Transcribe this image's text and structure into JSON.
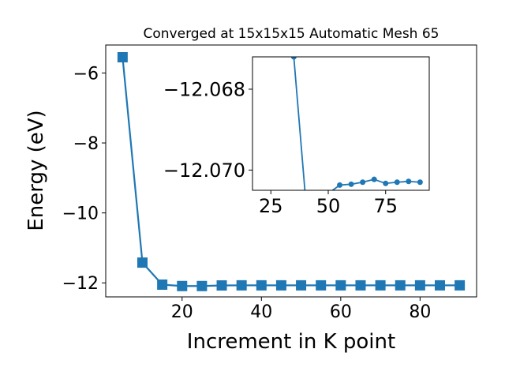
{
  "chart_data": [
    {
      "type": "line",
      "title": "Converged at 15x15x15 Automatic Mesh 65",
      "xlabel": "Increment in K point",
      "ylabel": "Energy (eV)",
      "xlim": [
        0.75,
        94.25
      ],
      "ylim": [
        -12.4,
        -5.2
      ],
      "xticks": [
        20,
        40,
        60,
        80
      ],
      "xtick_labels": [
        "20",
        "40",
        "60",
        "80"
      ],
      "yticks": [
        -12,
        -10,
        -8,
        -6
      ],
      "ytick_labels": [
        "−12",
        "−10",
        "−8",
        "−6"
      ],
      "marker": "square",
      "grid": false,
      "color": "#1f77b4",
      "series": [
        {
          "x": [
            5,
            10,
            15,
            20,
            25,
            30,
            35,
            40,
            45,
            50,
            55,
            60,
            65,
            70,
            75,
            80,
            85,
            90
          ],
          "y": [
            -5.55,
            -11.42,
            -12.05,
            -12.09,
            -12.09,
            -12.073,
            -12.0701,
            -12.0701,
            -12.0701,
            -12.0701,
            -12.0702,
            -12.0702,
            -12.0702,
            -12.0703,
            -12.0702,
            -12.0702,
            -12.0703,
            -12.0702
          ]
        }
      ]
    },
    {
      "type": "line",
      "title": "",
      "xlabel": "",
      "ylabel": "",
      "xlim": [
        17,
        94
      ],
      "ylim": [
        -12.0705,
        -12.0672
      ],
      "xticks": [
        25,
        50,
        75
      ],
      "xtick_labels": [
        "25",
        "50",
        "75"
      ],
      "yticks": [
        -12.07,
        -12.068
      ],
      "ytick_labels": [
        "−12.070",
        "−12.068"
      ],
      "marker": "circle",
      "grid": false,
      "color": "#1f77b4",
      "series": [
        {
          "x": [
            35,
            40,
            45,
            50,
            55,
            60,
            65,
            70,
            75,
            80,
            85,
            90
          ],
          "y": [
            -12.0672,
            -12.07062,
            -12.07058,
            -12.07058,
            -12.07037,
            -12.07035,
            -12.0703,
            -12.07023,
            -12.07033,
            -12.0703,
            -12.07028,
            -12.0703
          ]
        }
      ]
    }
  ]
}
